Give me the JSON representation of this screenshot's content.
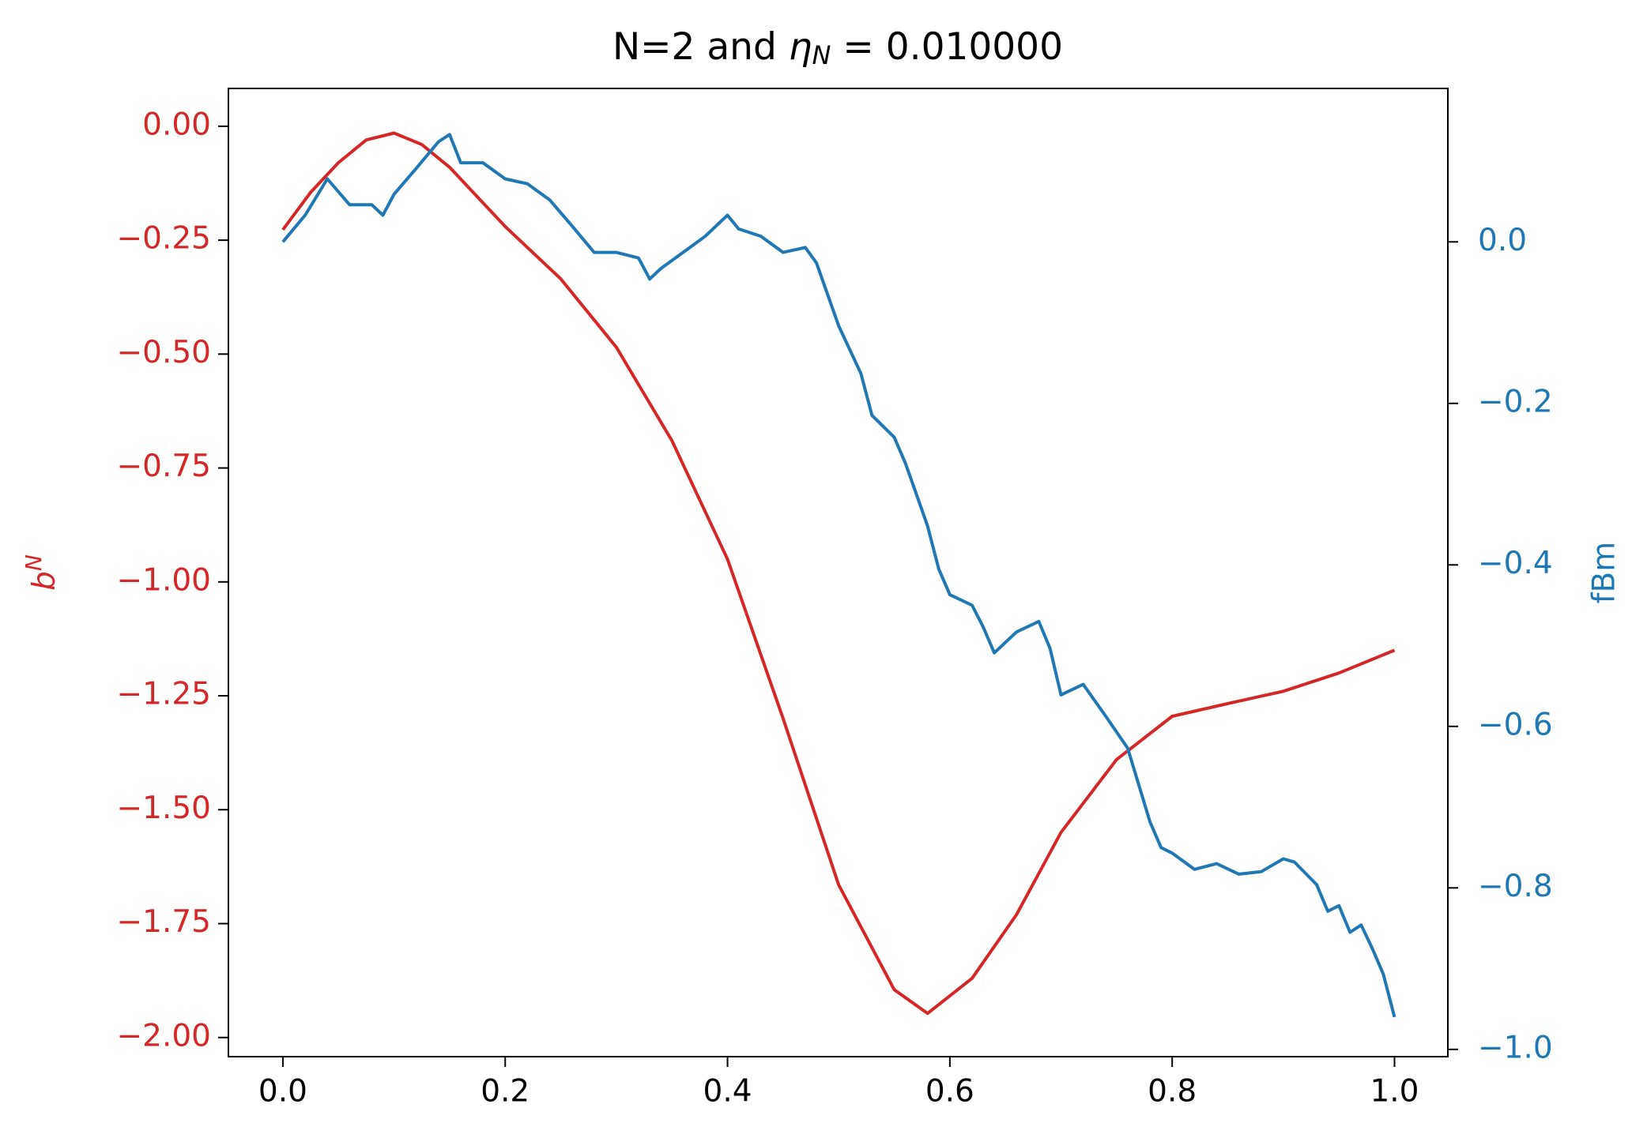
{
  "chart_data": {
    "type": "line",
    "title": [
      "N=2 and ",
      "η",
      "N",
      " = 0.010000"
    ],
    "y_label": [
      "b",
      "N"
    ],
    "y2_label": "fBm",
    "xlim": [
      -0.049,
      1.048
    ],
    "ylim": [
      -2.042,
      0.083
    ],
    "y2lim": [
      -1.009,
      0.19
    ],
    "xticks": [
      {
        "value": 0,
        "label": "0.0"
      },
      {
        "value": 0.2,
        "label": "0.2"
      },
      {
        "value": 0.4,
        "label": "0.4"
      },
      {
        "value": 0.6,
        "label": "0.6"
      },
      {
        "value": 0.8,
        "label": "0.8"
      },
      {
        "value": 1.0,
        "label": "1.0"
      }
    ],
    "yticks": [
      {
        "value": 0,
        "label": "0.00"
      },
      {
        "value": -0.25,
        "label": "−0.25"
      },
      {
        "value": -0.5,
        "label": "−0.50"
      },
      {
        "value": -0.75,
        "label": "−0.75"
      },
      {
        "value": -1.0,
        "label": "−1.00"
      },
      {
        "value": -1.25,
        "label": "−1.25"
      },
      {
        "value": -1.5,
        "label": "−1.50"
      },
      {
        "value": -1.75,
        "label": "−1.75"
      },
      {
        "value": -2.0,
        "label": "−2.00"
      }
    ],
    "y2ticks": [
      {
        "value": 0,
        "label": "0.0"
      },
      {
        "value": -0.2,
        "label": "−0.2"
      },
      {
        "value": -0.4,
        "label": "−0.4"
      },
      {
        "value": -0.6,
        "label": "−0.6"
      },
      {
        "value": -0.8,
        "label": "−0.8"
      },
      {
        "value": -1.0,
        "label": "−1.0"
      }
    ],
    "y_color": "#d62728",
    "y2_color": "#1f77b4",
    "series": [
      {
        "color": "#d62728",
        "axis": "y",
        "x": [
          0,
          0.025,
          0.05,
          0.075,
          0.1,
          0.125,
          0.15,
          0.2,
          0.25,
          0.3,
          0.35,
          0.4,
          0.45,
          0.5,
          0.55,
          0.58,
          0.62,
          0.66,
          0.7,
          0.75,
          0.8,
          0.85,
          0.9,
          0.95,
          1.0
        ],
        "values": [
          -0.227,
          -0.145,
          -0.08,
          -0.03,
          -0.015,
          -0.04,
          -0.09,
          -0.22,
          -0.335,
          -0.485,
          -0.69,
          -0.95,
          -1.3,
          -1.665,
          -1.895,
          -1.947,
          -1.87,
          -1.73,
          -1.55,
          -1.39,
          -1.295,
          -1.267,
          -1.24,
          -1.2,
          -1.15
        ]
      },
      {
        "color": "#1f77b4",
        "axis": "y2",
        "x": [
          0,
          0.02,
          0.04,
          0.06,
          0.08,
          0.09,
          0.1,
          0.12,
          0.14,
          0.15,
          0.16,
          0.18,
          0.2,
          0.22,
          0.24,
          0.26,
          0.28,
          0.3,
          0.32,
          0.33,
          0.34,
          0.36,
          0.38,
          0.4,
          0.41,
          0.43,
          0.45,
          0.47,
          0.48,
          0.5,
          0.52,
          0.53,
          0.55,
          0.56,
          0.57,
          0.58,
          0.59,
          0.6,
          0.62,
          0.63,
          0.64,
          0.66,
          0.68,
          0.69,
          0.7,
          0.72,
          0.74,
          0.76,
          0.78,
          0.79,
          0.8,
          0.82,
          0.84,
          0.86,
          0.88,
          0.9,
          0.91,
          0.93,
          0.94,
          0.95,
          0.96,
          0.97,
          0.98,
          0.99,
          1.0
        ],
        "values": [
          0.0,
          0.033,
          0.078,
          0.046,
          0.046,
          0.033,
          0.059,
          0.091,
          0.124,
          0.133,
          0.098,
          0.098,
          0.078,
          0.072,
          0.052,
          0.02,
          -0.013,
          -0.013,
          -0.02,
          -0.046,
          -0.033,
          -0.013,
          0.007,
          0.033,
          0.016,
          0.007,
          -0.013,
          -0.007,
          -0.026,
          -0.104,
          -0.163,
          -0.215,
          -0.242,
          -0.274,
          -0.313,
          -0.352,
          -0.405,
          -0.437,
          -0.45,
          -0.477,
          -0.509,
          -0.483,
          -0.47,
          -0.503,
          -0.561,
          -0.548,
          -0.587,
          -0.627,
          -0.718,
          -0.75,
          -0.757,
          -0.777,
          -0.77,
          -0.783,
          -0.78,
          -0.764,
          -0.768,
          -0.796,
          -0.829,
          -0.822,
          -0.855,
          -0.846,
          -0.875,
          -0.907,
          -0.96
        ]
      }
    ]
  }
}
